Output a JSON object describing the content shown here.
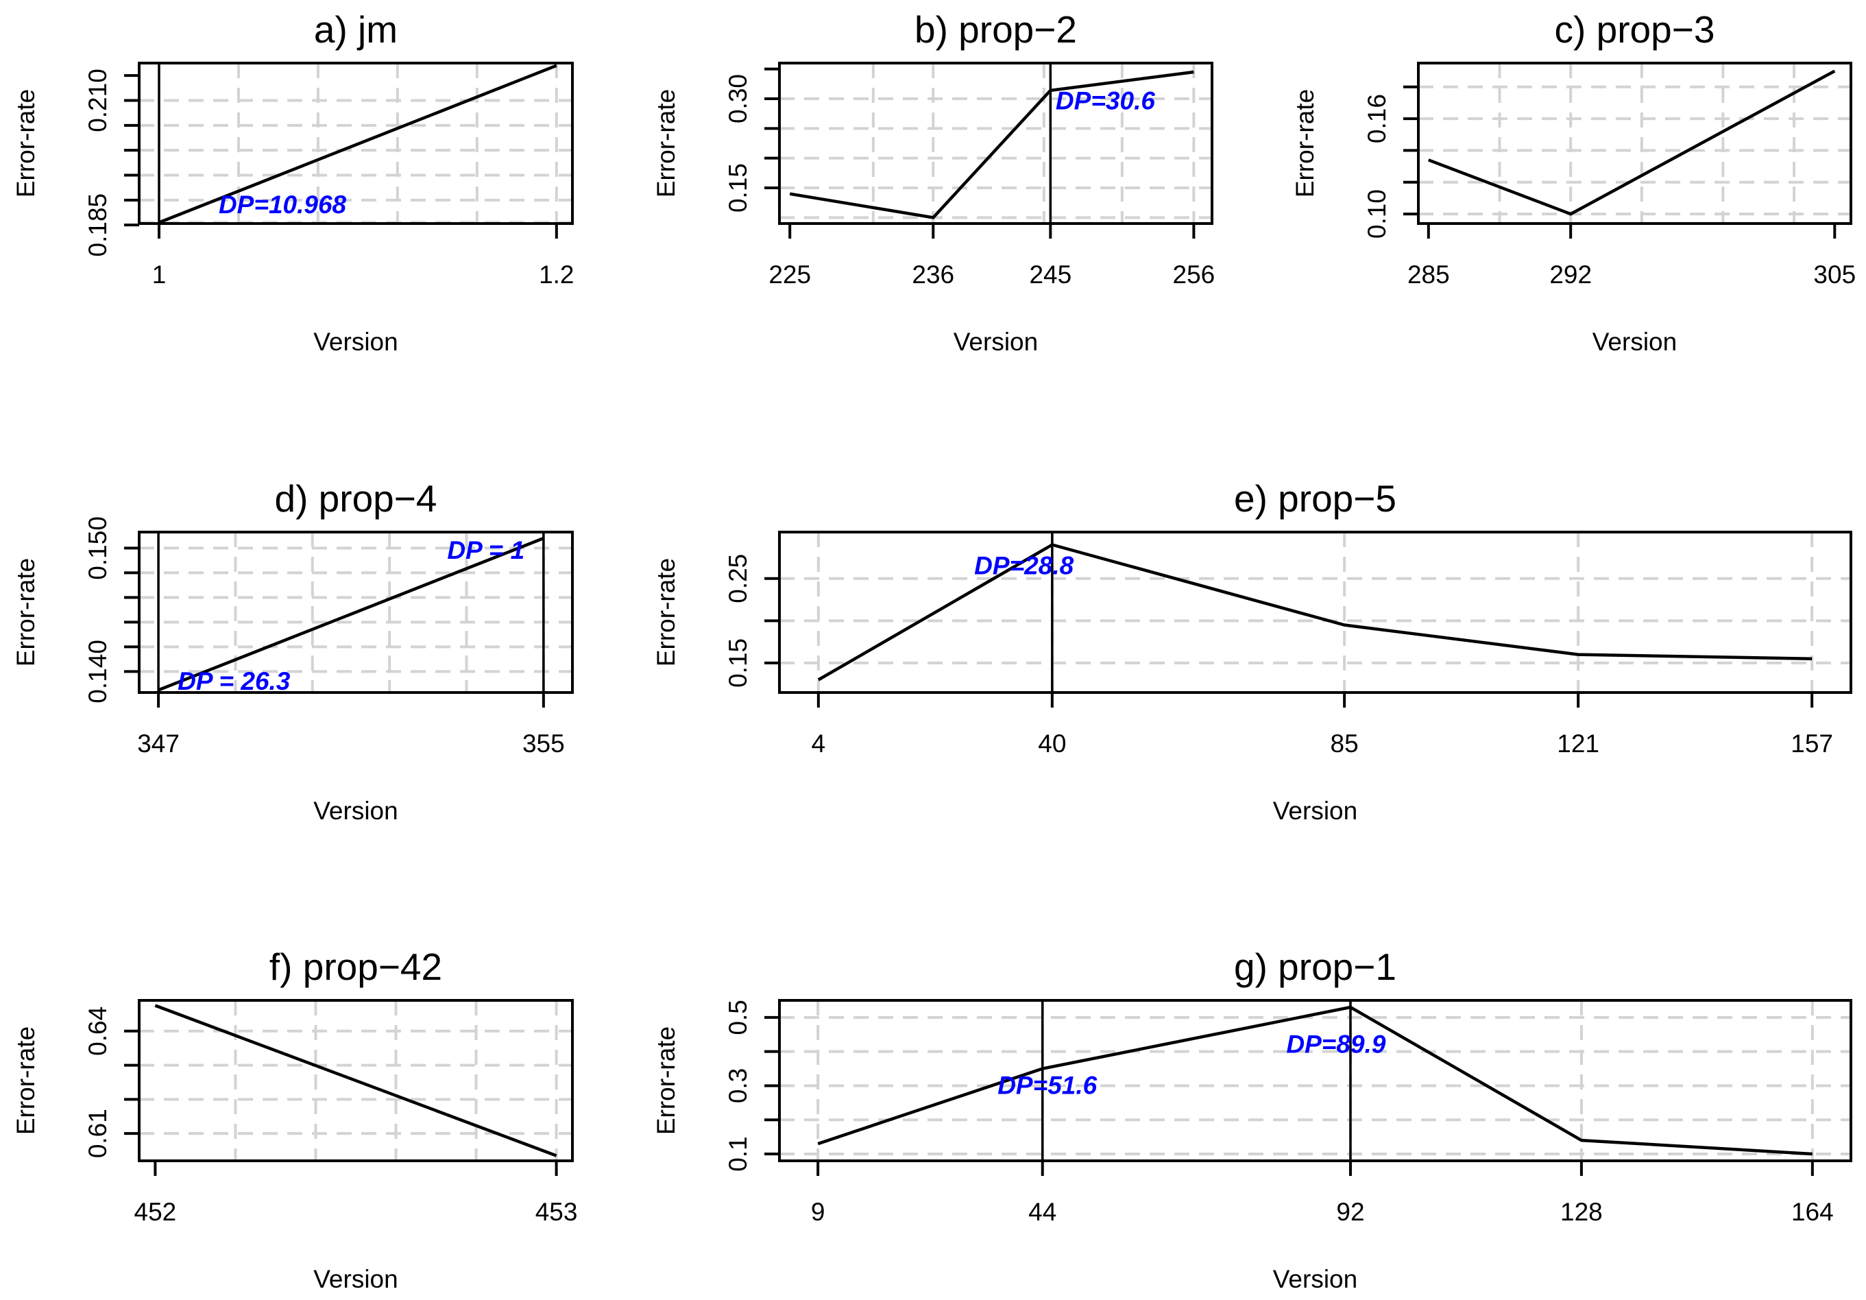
{
  "colors": {
    "annotation": "#0000ff",
    "grid": "#d3d3d3",
    "line": "#000000",
    "frame": "#000000"
  },
  "chart_data": [
    {
      "type": "line",
      "title": "a) jm",
      "xlabel": "Version",
      "ylabel": "Error-rate",
      "x": [
        1,
        1.2
      ],
      "y": [
        0.1855,
        0.217
      ],
      "xlim": [
        0.99,
        1.208
      ],
      "ylim": [
        0.1853,
        0.2175
      ],
      "xticks": [
        1,
        1.2
      ],
      "xtick_labels": [
        "1",
        "1.2"
      ],
      "yticks": [
        0.185,
        0.19,
        0.195,
        0.2,
        0.205,
        0.21,
        0.215
      ],
      "ytick_labels": [
        "0.185",
        "",
        "",
        "",
        "",
        "0.210",
        ""
      ],
      "xgrid": [
        1.04,
        1.08,
        1.12,
        1.16,
        1.2
      ],
      "ygrid": [
        0.1855,
        0.19,
        0.195,
        0.2,
        0.205,
        0.21
      ],
      "vlines": [
        1
      ],
      "annotations": [
        {
          "text": "DP=10.968",
          "x": 1.03,
          "y": 0.189
        }
      ]
    },
    {
      "type": "line",
      "title": "b) prop−2",
      "xlabel": "Version",
      "ylabel": "Error-rate",
      "x": [
        225,
        236,
        245,
        256
      ],
      "y": [
        0.14,
        0.1,
        0.314,
        0.345
      ],
      "xlim": [
        224.2,
        257.4
      ],
      "ylim": [
        0.09,
        0.36
      ],
      "xticks": [
        225,
        236,
        245,
        256
      ],
      "xtick_labels": [
        "225",
        "236",
        "245",
        "256"
      ],
      "yticks": [
        0.15,
        0.2,
        0.25,
        0.3,
        0.35
      ],
      "ytick_labels": [
        "0.15",
        "",
        "",
        "0.30",
        ""
      ],
      "xgrid": [
        231.4,
        236,
        244.5,
        250.5,
        256
      ],
      "ygrid": [
        0.1,
        0.15,
        0.2,
        0.25,
        0.3
      ],
      "vlines": [
        245
      ],
      "annotations": [
        {
          "text": "DP=30.6",
          "x": 245.4,
          "y": 0.296
        }
      ]
    },
    {
      "type": "line",
      "title": "c) prop−3",
      "xlabel": "Version",
      "ylabel": "Error-rate",
      "x": [
        285,
        292,
        305
      ],
      "y": [
        0.134,
        0.1,
        0.19
      ],
      "xlim": [
        284.5,
        305.8
      ],
      "ylim": [
        0.094,
        0.195
      ],
      "xticks": [
        285,
        292,
        305
      ],
      "xtick_labels": [
        "285",
        "292",
        "305"
      ],
      "yticks": [
        0.1,
        0.12,
        0.14,
        0.16,
        0.18
      ],
      "ytick_labels": [
        "0.10",
        "",
        "",
        "0.16",
        ""
      ],
      "xgrid": [
        288.5,
        292,
        295.5,
        299.5,
        303
      ],
      "ygrid": [
        0.1,
        0.12,
        0.14,
        0.16,
        0.18
      ],
      "vlines": [],
      "annotations": []
    },
    {
      "type": "line",
      "title": "d) prop−4",
      "xlabel": "Version",
      "ylabel": "Error-rate",
      "x": [
        347,
        355
      ],
      "y": [
        0.1385,
        0.1508
      ],
      "xlim": [
        346.6,
        355.6
      ],
      "ylim": [
        0.1383,
        0.1513
      ],
      "xticks": [
        347,
        355
      ],
      "xtick_labels": [
        "347",
        "355"
      ],
      "yticks": [
        0.14,
        0.142,
        0.144,
        0.146,
        0.148,
        0.15
      ],
      "ytick_labels": [
        "0.140",
        "",
        "",
        "",
        "",
        "0.150"
      ],
      "xgrid": [
        348.6,
        350.2,
        351.8,
        353.4,
        355
      ],
      "ygrid": [
        0.14,
        0.142,
        0.144,
        0.146,
        0.148,
        0.15
      ],
      "vlines": [
        347,
        355
      ],
      "annotations": [
        {
          "text": "DP = 26.3",
          "x": 347.4,
          "y": 0.1392
        },
        {
          "text": "DP = 1",
          "x": 353.0,
          "y": 0.1498
        }
      ]
    },
    {
      "type": "line",
      "title": "e) prop−5",
      "xlabel": "Version",
      "ylabel": "Error-rate",
      "x": [
        4,
        40,
        85,
        121,
        157
      ],
      "y": [
        0.13,
        0.29,
        0.195,
        0.16,
        0.155
      ],
      "xlim": [
        -2,
        163
      ],
      "ylim": [
        0.115,
        0.305
      ],
      "xticks": [
        4,
        40,
        85,
        121,
        157
      ],
      "xtick_labels": [
        "4",
        "40",
        "85",
        "121",
        "157"
      ],
      "yticks": [
        0.15,
        0.2,
        0.25
      ],
      "ytick_labels": [
        "0.15",
        "",
        "0.25"
      ],
      "xgrid": [
        4,
        40,
        85,
        121,
        157
      ],
      "ygrid": [
        0.15,
        0.2,
        0.25
      ],
      "vlines": [
        40
      ],
      "annotations": [
        {
          "text": "DP=28.8",
          "x": 28,
          "y": 0.265
        }
      ]
    },
    {
      "type": "line",
      "title": "f) prop−42",
      "xlabel": "Version",
      "ylabel": "Error-rate",
      "x": [
        452,
        453
      ],
      "y": [
        0.6475,
        0.6035
      ],
      "xlim": [
        451.96,
        453.04
      ],
      "ylim": [
        0.602,
        0.649
      ],
      "xticks": [
        452,
        453
      ],
      "xtick_labels": [
        "452",
        "453"
      ],
      "yticks": [
        0.61,
        0.62,
        0.63,
        0.64
      ],
      "ytick_labels": [
        "0.61",
        "",
        "",
        "0.64"
      ],
      "xgrid": [
        452.2,
        452.4,
        452.6,
        452.8,
        453
      ],
      "ygrid": [
        0.61,
        0.62,
        0.63,
        0.64
      ],
      "vlines": [],
      "annotations": []
    },
    {
      "type": "line",
      "title": "g) prop−1",
      "xlabel": "Version",
      "ylabel": "Error-rate",
      "x": [
        9,
        44,
        92,
        128,
        164
      ],
      "y": [
        0.13,
        0.35,
        0.53,
        0.14,
        0.1
      ],
      "xlim": [
        3,
        170
      ],
      "ylim": [
        0.08,
        0.55
      ],
      "xticks": [
        9,
        44,
        92,
        128,
        164
      ],
      "xtick_labels": [
        "9",
        "44",
        "92",
        "128",
        "164"
      ],
      "yticks": [
        0.1,
        0.2,
        0.3,
        0.4,
        0.5
      ],
      "ytick_labels": [
        "0.1",
        "",
        "0.3",
        "",
        "0.5"
      ],
      "xgrid": [
        9,
        44,
        92,
        128,
        164
      ],
      "ygrid": [
        0.1,
        0.2,
        0.3,
        0.4,
        0.5
      ],
      "vlines": [
        44,
        92
      ],
      "annotations": [
        {
          "text": "DP=51.6",
          "x": 37,
          "y": 0.3
        },
        {
          "text": "DP=89.9",
          "x": 82,
          "y": 0.42
        }
      ]
    }
  ]
}
